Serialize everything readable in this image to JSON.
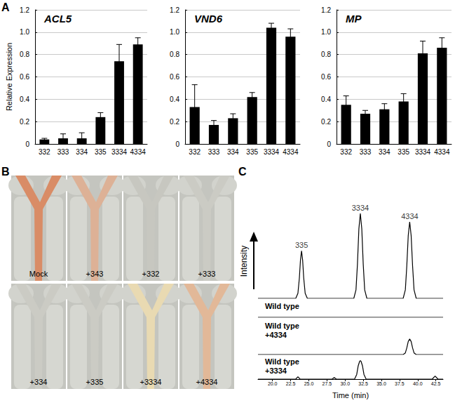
{
  "chart_data": [
    {
      "type": "bar",
      "panel": "A",
      "title": "ACL5",
      "ylabel": "Relative Expression",
      "categories": [
        "332",
        "333",
        "334",
        "335",
        "3334",
        "4334"
      ],
      "values": [
        0.04,
        0.05,
        0.05,
        0.24,
        0.74,
        0.89
      ],
      "errors": [
        0.01,
        0.04,
        0.05,
        0.04,
        0.15,
        0.06
      ],
      "ylim": [
        0,
        1.2
      ],
      "yticks": [
        0,
        0.2,
        0.4,
        0.6,
        0.8,
        {
          "value": 1,
          "label": "1.0"
        },
        1.2
      ],
      "grid": true,
      "color": "#000000"
    },
    {
      "type": "bar",
      "title": "VND6",
      "categories": [
        "332",
        "333",
        "334",
        "335",
        "3334",
        "4334"
      ],
      "values": [
        0.33,
        0.17,
        0.23,
        0.42,
        1.04,
        0.96
      ],
      "errors": [
        0.2,
        0.04,
        0.04,
        0.04,
        0.04,
        0.07
      ],
      "ylim": [
        0,
        1.2
      ],
      "yticks": [
        0,
        0.2,
        0.4,
        0.6,
        0.8,
        {
          "value": 1,
          "label": "1.0"
        },
        1.2
      ],
      "grid": true,
      "color": "#000000"
    },
    {
      "type": "bar",
      "title": "MP",
      "categories": [
        "332",
        "333",
        "334",
        "335",
        "3334",
        "4334"
      ],
      "values": [
        0.35,
        0.27,
        0.31,
        0.38,
        0.81,
        0.86
      ],
      "errors": [
        0.08,
        0.03,
        0.05,
        0.07,
        0.11,
        0.09
      ],
      "ylim": [
        0,
        1.2
      ],
      "yticks": [
        0,
        0.2,
        0.4,
        0.6,
        0.8,
        {
          "value": 1,
          "label": "1.0"
        },
        1.2
      ],
      "grid": true,
      "color": "#000000"
    },
    {
      "type": "image",
      "panel": "B",
      "labels": [
        "Mock",
        "+343",
        "+332",
        "+333",
        "+334",
        "+335",
        "+3334",
        "+4334"
      ],
      "colors": [
        "#d98c66",
        "#ddb196",
        "#c7c7c0",
        "#cbcbc4",
        "#cbcbc4",
        "#cbcbc4",
        "#e9dab2",
        "#e2b898"
      ]
    },
    {
      "type": "line",
      "panel": "C",
      "ylabel": "Intensity",
      "xlabel": "Time (min)",
      "xlim": [
        18,
        43.5
      ],
      "xticks": [
        {
          "value": 20,
          "label": "20.0"
        },
        22.5,
        {
          "value": 25,
          "label": "25.0"
        },
        27.5,
        {
          "value": 30,
          "label": "30.0"
        },
        32.5,
        {
          "value": 35,
          "label": "35.0"
        },
        37.5,
        {
          "value": 40,
          "label": "40.0"
        },
        42.5
      ],
      "tick_labels": "x",
      "color": "#000000",
      "annotations": [
        {
          "text": "335",
          "x": 24.0,
          "y": 0.56
        },
        {
          "text": "3334",
          "x": 32.1,
          "y": 1.0
        },
        {
          "text": "4334",
          "x": 38.9,
          "y": 0.9
        }
      ],
      "series": [
        {
          "name": null,
          "ylim": [
            0,
            1.05
          ],
          "x": [
            18,
            23.2,
            23.5,
            23.7,
            23.85,
            24.0,
            24.15,
            24.3,
            24.5,
            24.8,
            31.2,
            31.5,
            31.7,
            31.9,
            32.1,
            32.3,
            32.5,
            32.7,
            33.0,
            38.0,
            38.3,
            38.5,
            38.7,
            38.9,
            39.1,
            39.3,
            39.5,
            39.8,
            43.5
          ],
          "values": [
            0,
            0,
            0.06,
            0.24,
            0.45,
            0.56,
            0.45,
            0.24,
            0.06,
            0,
            0,
            0.1,
            0.4,
            0.82,
            1.0,
            0.82,
            0.4,
            0.1,
            0,
            0,
            0.1,
            0.38,
            0.74,
            0.9,
            0.74,
            0.38,
            0.1,
            0,
            0
          ]
        },
        {
          "name": "Wild type",
          "ylim": [
            0,
            0.3
          ],
          "x": [
            18,
            43.5
          ],
          "values": [
            0,
            0
          ]
        },
        {
          "name": "Wild type +4334",
          "ylim": [
            0,
            0.3
          ],
          "x": [
            18,
            38.0,
            38.3,
            38.5,
            38.7,
            38.9,
            39.1,
            39.3,
            39.5,
            39.8,
            43.5
          ],
          "values": [
            0,
            0,
            0.02,
            0.08,
            0.16,
            0.19,
            0.16,
            0.08,
            0.02,
            0,
            0
          ]
        },
        {
          "name": "Wild type +3334",
          "ylim": [
            0,
            0.3
          ],
          "x": [
            18,
            23.2,
            23.5,
            23.8,
            28.2,
            28.5,
            28.8,
            31.3,
            31.6,
            31.8,
            32.0,
            32.1,
            32.2,
            32.4,
            32.6,
            32.9,
            42.0,
            42.4,
            42.8,
            43.5
          ],
          "values": [
            0,
            0,
            0.03,
            0,
            0,
            0.02,
            0,
            0,
            0.06,
            0.17,
            0.23,
            0.24,
            0.23,
            0.17,
            0.06,
            0,
            0,
            0.04,
            0,
            0
          ]
        }
      ]
    }
  ]
}
